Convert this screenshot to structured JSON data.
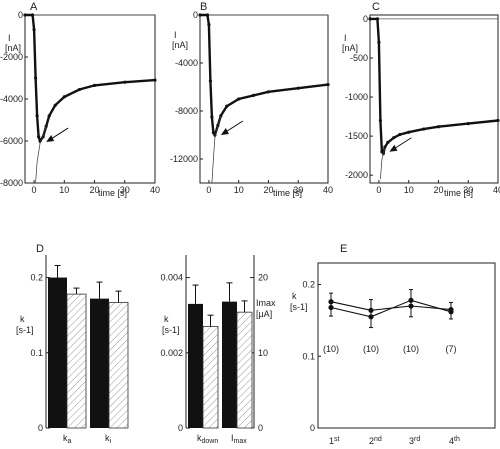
{
  "chart_data": [
    {
      "panel": "A",
      "type": "line",
      "ylabel_top": "I",
      "ylabel_unit": "[nA]",
      "xlabel": "time [s]",
      "xlim": [
        -3,
        40
      ],
      "ylim": [
        -8000,
        0
      ],
      "xticks": [
        "0",
        "10",
        "20",
        "30",
        "40"
      ],
      "yticks": [
        "0",
        "-2000",
        "-4000",
        "-6000",
        "-8000"
      ],
      "series": [
        {
          "values": [
            [
              -3,
              0
            ],
            [
              -0.5,
              0
            ],
            [
              0,
              -700
            ],
            [
              0.5,
              -3000
            ],
            [
              1,
              -4800
            ],
            [
              1.5,
              -5800
            ],
            [
              2,
              -6000
            ],
            [
              3,
              -5800
            ],
            [
              4,
              -5300
            ],
            [
              5,
              -4800
            ],
            [
              7,
              -4300
            ],
            [
              10,
              -3900
            ],
            [
              15,
              -3550
            ],
            [
              20,
              -3350
            ],
            [
              30,
              -3200
            ],
            [
              40,
              -3100
            ]
          ]
        }
      ],
      "fit": [
        [
          0.5,
          -8000
        ],
        [
          1,
          -7000
        ],
        [
          2,
          -6100
        ],
        [
          3,
          -5800
        ],
        [
          4,
          -5300
        ]
      ],
      "arrow": {
        "x": 3,
        "y": -6050
      }
    },
    {
      "panel": "B",
      "type": "line",
      "ylabel_top": "I",
      "ylabel_unit": "[nA]",
      "xlabel": "time [s]",
      "xlim": [
        -3,
        40
      ],
      "ylim": [
        -14000,
        0
      ],
      "xticks": [
        "0",
        "10",
        "20",
        "30",
        "40"
      ],
      "yticks": [
        "0",
        "-4000",
        "-8000",
        "-12000"
      ],
      "series": [
        {
          "values": [
            [
              -3,
              0
            ],
            [
              -0.5,
              0
            ],
            [
              0,
              -800
            ],
            [
              0.5,
              -5500
            ],
            [
              1,
              -8500
            ],
            [
              1.5,
              -9800
            ],
            [
              2,
              -10000
            ],
            [
              3,
              -9200
            ],
            [
              4,
              -8400
            ],
            [
              6,
              -7600
            ],
            [
              10,
              -7000
            ],
            [
              15,
              -6700
            ],
            [
              20,
              -6400
            ],
            [
              30,
              -6100
            ],
            [
              40,
              -5800
            ]
          ]
        }
      ],
      "fit": [
        [
          1,
          -14000
        ],
        [
          1.5,
          -12000
        ],
        [
          2,
          -10200
        ],
        [
          3,
          -9200
        ],
        [
          4,
          -8400
        ]
      ],
      "arrow": {
        "x": 3,
        "y": -10000
      }
    },
    {
      "panel": "C",
      "type": "line",
      "ylabel_top": "I",
      "ylabel_unit": "[nA]",
      "xlabel": "time [s]",
      "xlim": [
        -3,
        40
      ],
      "ylim": [
        -2100,
        50
      ],
      "xticks": [
        "0",
        "10",
        "20",
        "30",
        "40"
      ],
      "yticks": [
        "0",
        "-500",
        "-1000",
        "-1500",
        "-2000"
      ],
      "series": [
        {
          "values": [
            [
              -3,
              0
            ],
            [
              -0.5,
              0
            ],
            [
              0,
              -300
            ],
            [
              0.5,
              -1300
            ],
            [
              1,
              -1700
            ],
            [
              1.5,
              -1720
            ],
            [
              2,
              -1640
            ],
            [
              3,
              -1580
            ],
            [
              5,
              -1520
            ],
            [
              7,
              -1480
            ],
            [
              10,
              -1450
            ],
            [
              15,
              -1410
            ],
            [
              20,
              -1380
            ],
            [
              30,
              -1340
            ],
            [
              40,
              -1300
            ]
          ]
        }
      ],
      "fit": [
        [
          0.5,
          -2050
        ],
        [
          1,
          -1800
        ],
        [
          1.5,
          -1720
        ],
        [
          2,
          -1650
        ]
      ],
      "arrow": {
        "x": 2.5,
        "y": -1700
      }
    },
    {
      "panel": "D",
      "type": "bar",
      "left": {
        "ylabel_top": "k",
        "ylabel_unit": "[s-1]",
        "ylim": [
          0,
          0.23
        ],
        "yticks": [
          "0",
          "0.1",
          "0.2"
        ],
        "categories": [
          "k",
          "k"
        ],
        "category_subs": [
          "a",
          "i"
        ],
        "series": [
          {
            "values": [
              0.2,
              0.172
            ]
          },
          {
            "values": [
              0.178,
              0.167
            ]
          }
        ],
        "errors": [
          [
            0.016,
            0.022
          ],
          [
            0.008,
            0.015
          ]
        ]
      },
      "right": {
        "ylabel_top": "k",
        "ylabel_unit": "[s-1]",
        "ylabel2_top": "Imax",
        "ylabel2_unit": "[μA]",
        "ylim": [
          0,
          0.0046
        ],
        "ylim2": [
          0,
          23
        ],
        "yticks": [
          "0",
          "0.002",
          "0.004"
        ],
        "yticks2": [
          "0",
          "10",
          "20"
        ],
        "categories": [
          "k",
          "I"
        ],
        "category_subs": [
          "down",
          "max"
        ],
        "series": [
          {
            "values": [
              0.0033,
              16.8
            ]
          },
          {
            "values": [
              0.0027,
              15.4
            ]
          }
        ],
        "errors": [
          [
            0.0005,
            2.5
          ],
          [
            0.0003,
            1.5
          ]
        ]
      }
    },
    {
      "panel": "E",
      "type": "line",
      "ylabel_top": "k",
      "ylabel_unit": "[s-1]",
      "ylim": [
        0,
        0.23
      ],
      "yticks": [
        "0",
        "0.1",
        "0.2"
      ],
      "categories": [
        "1",
        "2",
        "3",
        "4"
      ],
      "category_sups": [
        "st",
        "nd",
        "rd",
        "th"
      ],
      "series": [
        {
          "values": [
            0.176,
            0.164,
            0.17,
            0.165
          ]
        },
        {
          "values": [
            0.168,
            0.155,
            0.178,
            0.162
          ]
        }
      ],
      "errors": [
        0.012,
        0.015,
        0.015,
        0.01
      ],
      "counts": [
        "(10)",
        "(10)",
        "(10)",
        "(7)"
      ]
    }
  ]
}
